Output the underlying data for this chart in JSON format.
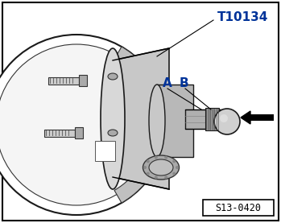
{
  "background_color": "#ffffff",
  "border_color": "#000000",
  "label_T10134": "T10134",
  "label_A": "A",
  "label_B": "B",
  "label_ref": "S13-0420",
  "label_color_blue": "#003399",
  "label_color_black": "#000000",
  "fig_width": 3.49,
  "fig_height": 2.77,
  "dpi": 100
}
